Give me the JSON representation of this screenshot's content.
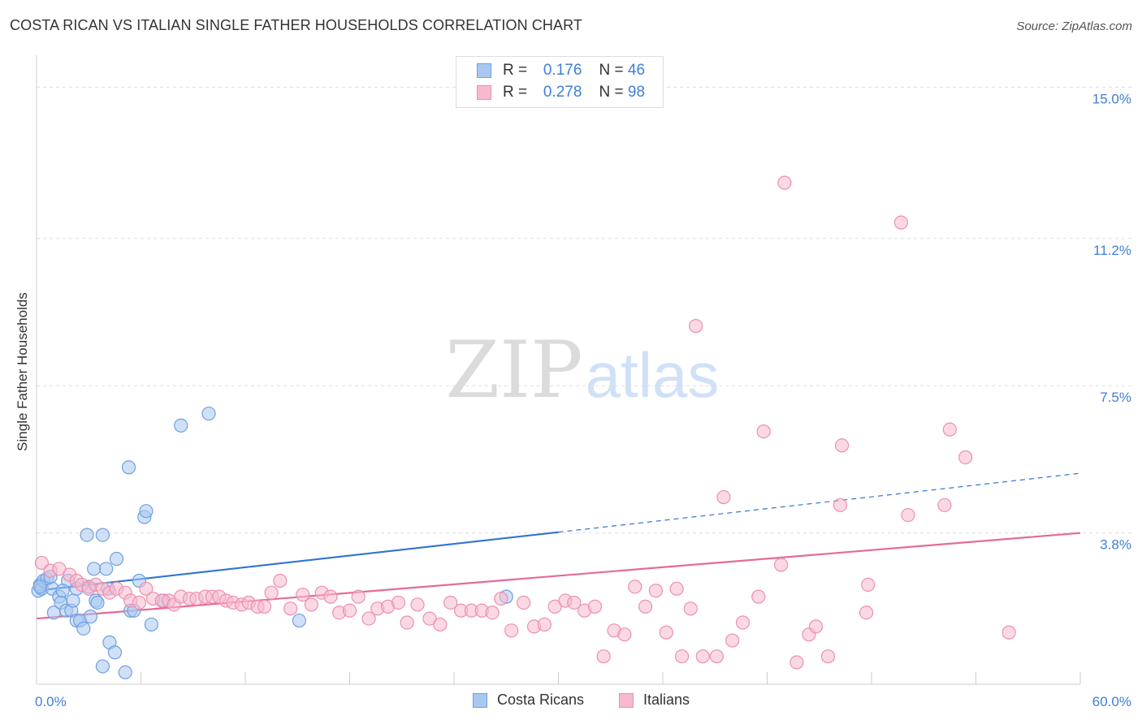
{
  "header": {
    "title": "COSTA RICAN VS ITALIAN SINGLE FATHER HOUSEHOLDS CORRELATION CHART",
    "source": "Source: ZipAtlas.com"
  },
  "legend": {
    "rows": [
      {
        "r_label": "R =",
        "r_value": "0.176",
        "n_label": "N =",
        "n_value": "46"
      },
      {
        "r_label": "R =",
        "r_value": "0.278",
        "n_label": "N =",
        "n_value": "98"
      }
    ],
    "bottom": [
      "Costa Ricans",
      "Italians"
    ]
  },
  "watermark": {
    "left": "ZIP",
    "right": "atlas"
  },
  "colors": {
    "blue_fill": "#a9c8f0",
    "blue_stroke": "#6f9fe0",
    "blue_line": "#2f74d0",
    "pink_fill": "#f7b9cd",
    "pink_stroke": "#ec8fae",
    "pink_line": "#e56b95",
    "axis_label": "#3f7fd4",
    "grid": "#dddddd"
  },
  "chart_data": {
    "type": "scatter",
    "title": "COSTA RICAN VS ITALIAN SINGLE FATHER HOUSEHOLDS CORRELATION CHART",
    "xlabel": "",
    "ylabel": "Single Father Households",
    "xlim": [
      0,
      60
    ],
    "ylim": [
      0,
      15.6
    ],
    "x_tick_labels": [
      "0.0%",
      "60.0%"
    ],
    "y_ticks": [
      3.8,
      7.5,
      11.2,
      15.0
    ],
    "y_tick_labels": [
      "3.8%",
      "7.5%",
      "11.2%",
      "15.0%"
    ],
    "series": [
      {
        "name": "Costa Ricans",
        "color": "blue",
        "points": [
          [
            0.1,
            2.35
          ],
          [
            0.2,
            2.5
          ],
          [
            0.3,
            2.4
          ],
          [
            0.4,
            2.6
          ],
          [
            0.6,
            2.65
          ],
          [
            0.9,
            2.4
          ],
          [
            1.0,
            1.8
          ],
          [
            1.3,
            2.2
          ],
          [
            1.4,
            2.05
          ],
          [
            1.7,
            1.85
          ],
          [
            1.8,
            2.6
          ],
          [
            2.0,
            1.85
          ],
          [
            2.1,
            2.1
          ],
          [
            2.3,
            2.4
          ],
          [
            2.3,
            1.6
          ],
          [
            2.5,
            1.6
          ],
          [
            2.7,
            1.4
          ],
          [
            3.0,
            2.45
          ],
          [
            3.1,
            1.7
          ],
          [
            3.3,
            2.9
          ],
          [
            3.4,
            2.1
          ],
          [
            3.5,
            2.05
          ],
          [
            3.8,
            3.75
          ],
          [
            3.8,
            0.45
          ],
          [
            4.0,
            2.9
          ],
          [
            4.1,
            2.4
          ],
          [
            4.2,
            1.05
          ],
          [
            4.5,
            0.8
          ],
          [
            4.6,
            3.15
          ],
          [
            5.1,
            0.3
          ],
          [
            5.3,
            5.45
          ],
          [
            5.4,
            1.85
          ],
          [
            5.6,
            1.85
          ],
          [
            5.9,
            2.6
          ],
          [
            6.2,
            4.2
          ],
          [
            6.3,
            4.35
          ],
          [
            6.6,
            1.5
          ],
          [
            7.3,
            2.1
          ],
          [
            8.3,
            6.5
          ],
          [
            9.9,
            6.8
          ],
          [
            15.1,
            1.6
          ],
          [
            27.0,
            2.2
          ],
          [
            0.2,
            2.45
          ],
          [
            1.5,
            2.35
          ],
          [
            2.9,
            3.75
          ],
          [
            0.8,
            2.7
          ]
        ],
        "trend": {
          "x_solid": [
            0,
            30
          ],
          "y_solid": [
            2.35,
            3.82
          ],
          "x_dashed": [
            30,
            60
          ],
          "y_dashed": [
            3.82,
            5.3
          ]
        }
      },
      {
        "name": "Italians",
        "color": "pink",
        "points": [
          [
            0.3,
            3.05
          ],
          [
            0.8,
            2.85
          ],
          [
            1.3,
            2.9
          ],
          [
            1.9,
            2.75
          ],
          [
            2.3,
            2.6
          ],
          [
            2.6,
            2.5
          ],
          [
            3.0,
            2.4
          ],
          [
            3.4,
            2.5
          ],
          [
            3.8,
            2.4
          ],
          [
            4.2,
            2.3
          ],
          [
            4.6,
            2.4
          ],
          [
            5.1,
            2.3
          ],
          [
            5.4,
            2.1
          ],
          [
            5.9,
            2.05
          ],
          [
            6.3,
            2.4
          ],
          [
            6.7,
            2.15
          ],
          [
            7.2,
            2.1
          ],
          [
            7.6,
            2.1
          ],
          [
            7.9,
            2.0
          ],
          [
            8.3,
            2.2
          ],
          [
            8.8,
            2.15
          ],
          [
            9.2,
            2.15
          ],
          [
            9.7,
            2.2
          ],
          [
            10.1,
            2.2
          ],
          [
            10.5,
            2.2
          ],
          [
            10.9,
            2.1
          ],
          [
            11.3,
            2.05
          ],
          [
            11.8,
            2.0
          ],
          [
            12.2,
            2.05
          ],
          [
            12.7,
            1.95
          ],
          [
            13.1,
            1.95
          ],
          [
            13.5,
            2.3
          ],
          [
            14.0,
            2.6
          ],
          [
            14.6,
            1.9
          ],
          [
            15.3,
            2.25
          ],
          [
            15.8,
            2.0
          ],
          [
            16.4,
            2.3
          ],
          [
            16.9,
            2.2
          ],
          [
            17.4,
            1.8
          ],
          [
            18.0,
            1.85
          ],
          [
            18.5,
            2.2
          ],
          [
            19.1,
            1.65
          ],
          [
            19.6,
            1.9
          ],
          [
            20.2,
            1.95
          ],
          [
            20.8,
            2.05
          ],
          [
            21.3,
            1.55
          ],
          [
            21.9,
            2.0
          ],
          [
            22.6,
            1.65
          ],
          [
            23.2,
            1.5
          ],
          [
            23.8,
            2.05
          ],
          [
            24.4,
            1.85
          ],
          [
            25.0,
            1.85
          ],
          [
            25.6,
            1.85
          ],
          [
            26.2,
            1.8
          ],
          [
            26.7,
            2.15
          ],
          [
            27.3,
            1.35
          ],
          [
            28.0,
            2.05
          ],
          [
            28.6,
            1.45
          ],
          [
            29.2,
            1.5
          ],
          [
            29.8,
            1.95
          ],
          [
            30.4,
            2.1
          ],
          [
            30.9,
            2.05
          ],
          [
            31.5,
            1.85
          ],
          [
            32.1,
            1.95
          ],
          [
            32.6,
            0.7
          ],
          [
            33.2,
            1.35
          ],
          [
            33.8,
            1.25
          ],
          [
            34.4,
            2.45
          ],
          [
            35.0,
            1.95
          ],
          [
            35.6,
            2.35
          ],
          [
            36.2,
            1.3
          ],
          [
            36.8,
            2.4
          ],
          [
            37.1,
            0.7
          ],
          [
            37.6,
            1.9
          ],
          [
            37.9,
            9.0
          ],
          [
            38.3,
            0.7
          ],
          [
            39.1,
            0.7
          ],
          [
            39.5,
            4.7
          ],
          [
            40.0,
            1.1
          ],
          [
            40.6,
            1.55
          ],
          [
            41.5,
            2.2
          ],
          [
            41.8,
            6.35
          ],
          [
            42.8,
            3.0
          ],
          [
            43.0,
            12.6
          ],
          [
            43.7,
            0.55
          ],
          [
            44.4,
            1.25
          ],
          [
            44.8,
            1.45
          ],
          [
            45.5,
            0.7
          ],
          [
            46.2,
            4.5
          ],
          [
            46.3,
            6.0
          ],
          [
            47.7,
            1.8
          ],
          [
            47.8,
            2.5
          ],
          [
            49.7,
            11.6
          ],
          [
            50.1,
            4.25
          ],
          [
            52.2,
            4.5
          ],
          [
            52.5,
            6.4
          ],
          [
            53.4,
            5.7
          ],
          [
            55.9,
            1.3
          ]
        ],
        "trend": {
          "x_solid": [
            0,
            60
          ],
          "y_solid": [
            1.65,
            3.8
          ]
        }
      }
    ]
  }
}
